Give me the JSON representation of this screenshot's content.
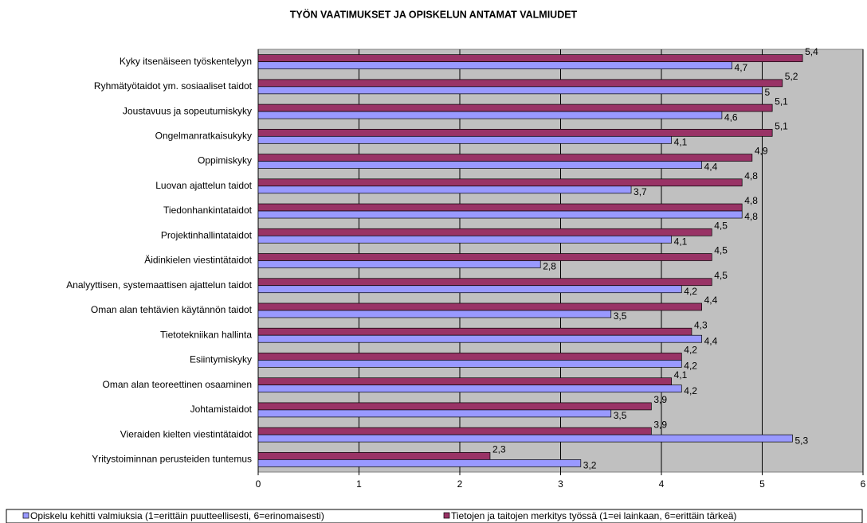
{
  "chart_data": {
    "type": "hbar",
    "title": "TYÖN VAATIMUKSET JA OPISKELUN ANTAMAT VALMIUDET",
    "categories": [
      "Kyky itsenäiseen työskentelyyn",
      "Ryhmätyötaidot ym. sosiaaliset taidot",
      "Joustavuus  ja sopeutumiskyky",
      "Ongelmanratkaisukyky",
      "Oppimiskyky",
      "Luovan ajattelun taidot",
      "Tiedonhankintataidot",
      "Projektinhallintataidot",
      "Äidinkielen viestintätaidot",
      "Analyyttisen, systemaattisen ajattelun taidot",
      "Oman alan tehtävien käytännön taidot",
      "Tietotekniikan hallinta",
      "Esiintymiskyky",
      "Oman alan teoreettinen osaaminen",
      "Johtamistaidot",
      "Vieraiden kielten viestintätaidot",
      "Yritystoiminnan perusteiden tuntemus"
    ],
    "series": [
      {
        "name": "Opiskelu kehitti valmiuksia (1=erittäin puutteellisesti, 6=erinomaisesti)",
        "color": "#9999ff",
        "values": [
          4.7,
          5,
          4.6,
          4.1,
          4.4,
          3.7,
          4.8,
          4.1,
          2.8,
          4.2,
          3.5,
          4.4,
          4.2,
          4.2,
          3.5,
          5.3,
          3.2
        ],
        "value_labels": [
          "4,7",
          "5",
          "4,6",
          "4,1",
          "4,4",
          "3,7",
          "4,8",
          "4,1",
          "2,8",
          "4,2",
          "3,5",
          "4,4",
          "4,2",
          "4,2",
          "3,5",
          "5,3",
          "3,2"
        ]
      },
      {
        "name": "Tietojen ja taitojen merkitys työssä (1=ei lainkaan, 6=erittäin tärkeä)",
        "color": "#993366",
        "values": [
          5.4,
          5.2,
          5.1,
          5.1,
          4.9,
          4.8,
          4.8,
          4.5,
          4.5,
          4.5,
          4.4,
          4.3,
          4.2,
          4.1,
          3.9,
          3.9,
          2.3
        ],
        "value_labels": [
          "5,4",
          "5,2",
          "5,1",
          "5,1",
          "4,9",
          "4,8",
          "4,8",
          "4,5",
          "4,5",
          "4,5",
          "4,4",
          "4,3",
          "4,2",
          "4,1",
          "3,9",
          "3,9",
          "2,3"
        ]
      }
    ],
    "xlim": [
      0,
      6
    ],
    "xticks": [
      0,
      1,
      2,
      3,
      4,
      5,
      6
    ],
    "grid": true
  }
}
